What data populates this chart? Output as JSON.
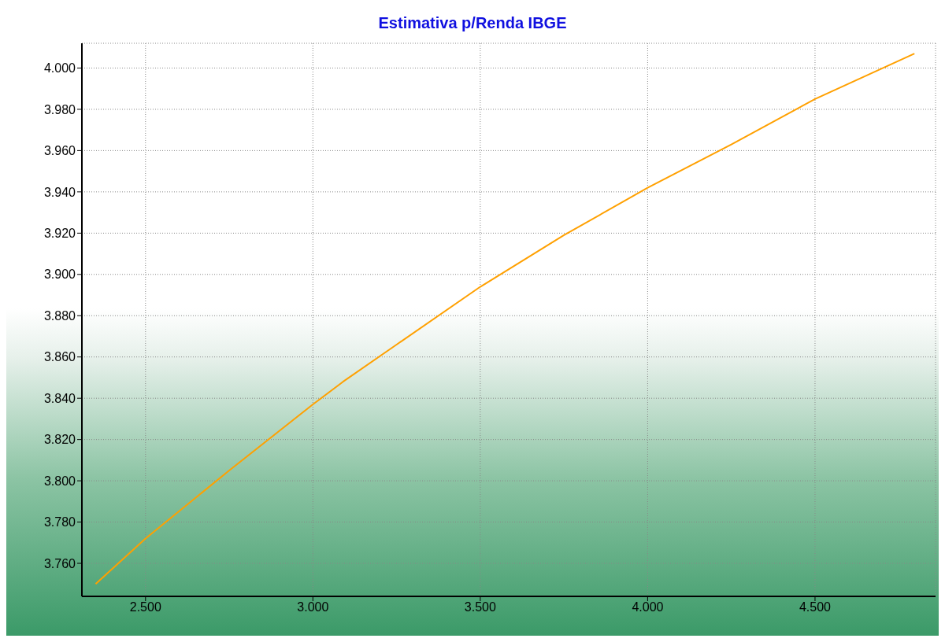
{
  "chart_data": {
    "type": "line",
    "title": "Estimativa p/Renda IBGE",
    "x": [
      2351,
      2500,
      2750,
      3000,
      3090,
      3250,
      3500,
      3750,
      4000,
      4250,
      4500,
      4797
    ],
    "series": [
      {
        "color": "#ffa000",
        "values": [
          3750,
          3772,
          3805,
          3837,
          3848,
          3866,
          3894,
          3919,
          3942,
          3963,
          3985,
          4007
        ]
      }
    ],
    "xlim": [
      2310,
      4860
    ],
    "ylim": [
      3744,
      4012
    ],
    "xticks": [
      {
        "value": 2500,
        "label": "2.500"
      },
      {
        "value": 3000,
        "label": "3.000"
      },
      {
        "value": 3500,
        "label": "3.500"
      },
      {
        "value": 4000,
        "label": "4.000"
      },
      {
        "value": 4500,
        "label": "4.500"
      }
    ],
    "yticks": [
      {
        "value": 3760,
        "label": "3.760"
      },
      {
        "value": 3780,
        "label": "3.780"
      },
      {
        "value": 3800,
        "label": "3.800"
      },
      {
        "value": 3820,
        "label": "3.820"
      },
      {
        "value": 3840,
        "label": "3.840"
      },
      {
        "value": 3860,
        "label": "3.860"
      },
      {
        "value": 3880,
        "label": "3.880"
      },
      {
        "value": 3900,
        "label": "3.900"
      },
      {
        "value": 3920,
        "label": "3.920"
      },
      {
        "value": 3940,
        "label": "3.940"
      },
      {
        "value": 3960,
        "label": "3.960"
      },
      {
        "value": 3980,
        "label": "3.980"
      },
      {
        "value": 4000,
        "label": "4.000"
      }
    ],
    "grid": true,
    "marker": "none",
    "line_style": "solid",
    "legend": false
  }
}
